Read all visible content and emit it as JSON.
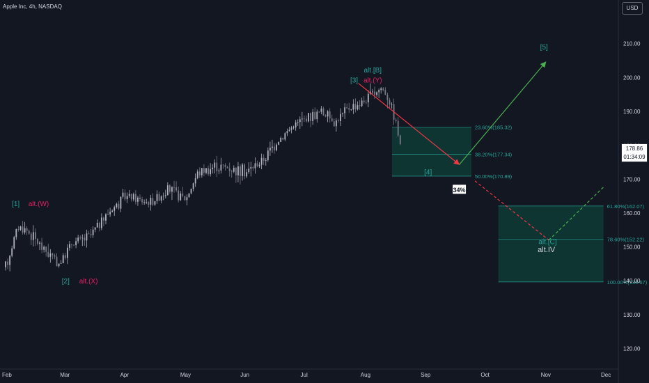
{
  "header": {
    "title": "Apple Inc, 4h, NASDAQ",
    "currency": "USD"
  },
  "price_tag": {
    "price": "178.86",
    "countdown": "01:34:09"
  },
  "chart_data": {
    "type": "candlestick",
    "instrument": "Apple Inc",
    "interval": "4h",
    "exchange": "NASDAQ",
    "ylim": [
      115,
      218
    ],
    "y_ticks": [
      "120.00",
      "130.00",
      "140.00",
      "150.00",
      "160.00",
      "170.00",
      "180.00",
      "190.00",
      "200.00",
      "210.00"
    ],
    "x_ticks": [
      "Feb",
      "Mar",
      "Apr",
      "May",
      "Jun",
      "Jul",
      "Aug",
      "Sep",
      "Oct",
      "Nov",
      "Dec"
    ],
    "price_path": [
      {
        "m": 0.0,
        "p": 144.0
      },
      {
        "m": 0.2,
        "p": 156.0
      },
      {
        "m": 0.35,
        "p": 155.0
      },
      {
        "m": 0.6,
        "p": 150.0
      },
      {
        "m": 0.9,
        "p": 145.0
      },
      {
        "m": 1.1,
        "p": 151.0
      },
      {
        "m": 1.4,
        "p": 153.0
      },
      {
        "m": 1.7,
        "p": 160.0
      },
      {
        "m": 2.0,
        "p": 165.0
      },
      {
        "m": 2.4,
        "p": 163.0
      },
      {
        "m": 2.7,
        "p": 167.0
      },
      {
        "m": 3.0,
        "p": 164.0
      },
      {
        "m": 3.2,
        "p": 172.0
      },
      {
        "m": 3.5,
        "p": 174.0
      },
      {
        "m": 3.8,
        "p": 173.0
      },
      {
        "m": 4.0,
        "p": 172.0
      },
      {
        "m": 4.3,
        "p": 176.0
      },
      {
        "m": 4.5,
        "p": 181.0
      },
      {
        "m": 4.8,
        "p": 186.0
      },
      {
        "m": 5.0,
        "p": 188.0
      },
      {
        "m": 5.25,
        "p": 190.0
      },
      {
        "m": 5.5,
        "p": 187.0
      },
      {
        "m": 5.7,
        "p": 191.0
      },
      {
        "m": 5.95,
        "p": 193.0
      },
      {
        "m": 6.1,
        "p": 195.0
      },
      {
        "m": 6.25,
        "p": 197.0
      },
      {
        "m": 6.35,
        "p": 195.0
      },
      {
        "m": 6.45,
        "p": 190.0
      },
      {
        "m": 6.52,
        "p": 185.0
      },
      {
        "m": 6.58,
        "p": 178.5
      }
    ],
    "fib_zones": [
      {
        "name": "upper",
        "x_range": [
          6.43,
          7.75
        ],
        "levels": [
          {
            "label": "23.60%(185.32)",
            "value": 185.32
          },
          {
            "label": "38.20%(177.34)",
            "value": 177.34
          },
          {
            "label": "50.00%(170.89)",
            "value": 170.89
          }
        ]
      },
      {
        "name": "lower",
        "x_range": [
          8.2,
          9.95
        ],
        "levels": [
          {
            "label": "61.80%(162.07)",
            "value": 162.07
          },
          {
            "label": "78.60%(152.22)",
            "value": 152.22
          },
          {
            "label": "100.00%(139.67)",
            "value": 139.67
          }
        ]
      }
    ],
    "wave_labels": [
      {
        "text": "[1]",
        "m": 0.17,
        "p": 162.0,
        "color": "#26a69a"
      },
      {
        "text": "alt.(W)",
        "m": 0.55,
        "p": 162.0,
        "color": "#e91e63"
      },
      {
        "text": "[2]",
        "m": 1.0,
        "p": 139.2,
        "color": "#26a69a"
      },
      {
        "text": "alt.(X)",
        "m": 1.38,
        "p": 139.2,
        "color": "#e91e63"
      },
      {
        "text": "[3]",
        "m": 5.8,
        "p": 198.5,
        "color": "#26a69a"
      },
      {
        "text": "alt.[B]",
        "m": 6.11,
        "p": 201.5,
        "color": "#26a69a"
      },
      {
        "text": "alt.(Y)",
        "m": 6.11,
        "p": 198.5,
        "color": "#e91e63"
      },
      {
        "text": "[4]",
        "m": 7.03,
        "p": 171.4,
        "color": "#26a69a"
      },
      {
        "text": "[5]",
        "m": 8.96,
        "p": 208.3,
        "color": "#26a69a"
      },
      {
        "text": "alt.[C]",
        "m": 9.02,
        "p": 150.8,
        "color": "#26a69a"
      },
      {
        "text": "alt.IV",
        "m": 9.0,
        "p": 148.5,
        "color": "#d1d4dc"
      }
    ],
    "projections": [
      {
        "name": "down-to-[4]",
        "from": {
          "m": 5.87,
          "p": 198.3
        },
        "to": {
          "m": 7.55,
          "p": 174.3
        },
        "color": "#f23645",
        "style": "solid"
      },
      {
        "name": "up-to-[5]",
        "from": {
          "m": 7.55,
          "p": 174.3
        },
        "to": {
          "m": 8.99,
          "p": 204.6
        },
        "color": "#4caf50",
        "style": "solid"
      },
      {
        "name": "down-to-alt.[C]",
        "from": {
          "m": 7.81,
          "p": 169.5
        },
        "to": {
          "m": 9.04,
          "p": 152.0
        },
        "color": "#f23645",
        "style": "dashed"
      },
      {
        "name": "up-from-alt.[C]",
        "from": {
          "m": 9.04,
          "p": 152.0
        },
        "to": {
          "m": 9.97,
          "p": 168.0
        },
        "color": "#4caf50",
        "style": "dashed"
      }
    ],
    "badge": {
      "text": "34%",
      "m": 7.55,
      "p": 166.8
    }
  }
}
